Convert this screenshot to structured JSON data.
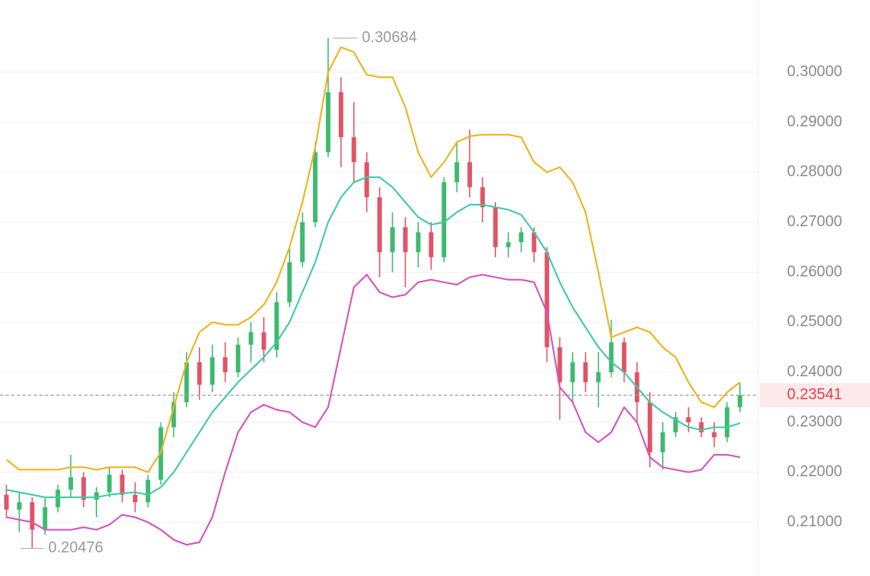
{
  "chart_data": {
    "type": "candlestick",
    "ylim": [
      0.19925,
      0.31444
    ],
    "yticks": [
      {
        "value": 0.21,
        "label": "0.21000"
      },
      {
        "value": 0.22,
        "label": "0.22000"
      },
      {
        "value": 0.23,
        "label": "0.23000"
      },
      {
        "value": 0.24,
        "label": "0.24000"
      },
      {
        "value": 0.25,
        "label": "0.25000"
      },
      {
        "value": 0.26,
        "label": "0.26000"
      },
      {
        "value": 0.27,
        "label": "0.27000"
      },
      {
        "value": 0.28,
        "label": "0.28000"
      },
      {
        "value": 0.29,
        "label": "0.29000"
      },
      {
        "value": 0.3,
        "label": "0.30000"
      }
    ],
    "grid": true,
    "up_color": "#3dba6f",
    "down_color": "#e05467",
    "open": [
      0.2155,
      0.2125,
      0.214,
      0.2085,
      0.213,
      0.2165,
      0.219,
      0.2145,
      0.216,
      0.2195,
      0.2155,
      0.214,
      0.2185,
      0.229,
      0.234,
      0.242,
      0.2375,
      0.243,
      0.24,
      0.2455,
      0.248,
      0.2445,
      0.254,
      0.262,
      0.27,
      0.284,
      0.296,
      0.287,
      0.282,
      0.275,
      0.264,
      0.269,
      0.264,
      0.268,
      0.263,
      0.278,
      0.282,
      0.277,
      0.273,
      0.265,
      0.266,
      0.268,
      0.264,
      0.245,
      0.238,
      0.242,
      0.238,
      0.24,
      0.246,
      0.24,
      0.234,
      0.224,
      0.228,
      0.231,
      0.23,
      0.228,
      0.227,
      0.233
    ],
    "high": [
      0.2175,
      0.216,
      0.215,
      0.215,
      0.2175,
      0.2235,
      0.22,
      0.217,
      0.221,
      0.2205,
      0.218,
      0.2195,
      0.23,
      0.236,
      0.244,
      0.245,
      0.2455,
      0.246,
      0.247,
      0.25,
      0.251,
      0.256,
      0.265,
      0.272,
      0.286,
      0.30684,
      0.299,
      0.294,
      0.284,
      0.277,
      0.272,
      0.271,
      0.27,
      0.27,
      0.279,
      0.286,
      0.2885,
      0.279,
      0.274,
      0.268,
      0.269,
      0.269,
      0.265,
      0.247,
      0.244,
      0.244,
      0.244,
      0.2505,
      0.247,
      0.242,
      0.236,
      0.23,
      0.232,
      0.233,
      0.231,
      0.23,
      0.234,
      0.2378
    ],
    "low": [
      0.211,
      0.208,
      0.20476,
      0.2075,
      0.212,
      0.215,
      0.213,
      0.211,
      0.215,
      0.214,
      0.212,
      0.213,
      0.2175,
      0.227,
      0.233,
      0.2345,
      0.236,
      0.238,
      0.239,
      0.242,
      0.242,
      0.243,
      0.253,
      0.261,
      0.269,
      0.283,
      0.281,
      0.278,
      0.272,
      0.259,
      0.26,
      0.257,
      0.261,
      0.2605,
      0.262,
      0.276,
      0.275,
      0.27,
      0.263,
      0.263,
      0.264,
      0.262,
      0.242,
      0.2305,
      0.234,
      0.236,
      0.233,
      0.239,
      0.238,
      0.23,
      0.221,
      0.2205,
      0.227,
      0.228,
      0.227,
      0.225,
      0.226,
      0.232
    ],
    "close": [
      0.2125,
      0.214,
      0.2085,
      0.213,
      0.2165,
      0.219,
      0.2145,
      0.216,
      0.2195,
      0.2155,
      0.214,
      0.2185,
      0.229,
      0.234,
      0.242,
      0.2375,
      0.243,
      0.24,
      0.2455,
      0.248,
      0.2445,
      0.254,
      0.262,
      0.27,
      0.284,
      0.296,
      0.287,
      0.282,
      0.275,
      0.264,
      0.269,
      0.264,
      0.268,
      0.263,
      0.278,
      0.282,
      0.277,
      0.273,
      0.265,
      0.266,
      0.268,
      0.264,
      0.245,
      0.238,
      0.242,
      0.238,
      0.24,
      0.246,
      0.24,
      0.234,
      0.224,
      0.228,
      0.231,
      0.23,
      0.228,
      0.227,
      0.233,
      0.2354
    ],
    "bands": [
      {
        "color": "#eeb31a",
        "values": [
          0.2225,
          0.2205,
          0.2205,
          0.2205,
          0.2205,
          0.221,
          0.221,
          0.2205,
          0.221,
          0.221,
          0.221,
          0.22,
          0.224,
          0.233,
          0.242,
          0.248,
          0.25,
          0.2495,
          0.2495,
          0.251,
          0.2535,
          0.258,
          0.265,
          0.274,
          0.285,
          0.3,
          0.305,
          0.304,
          0.2995,
          0.299,
          0.299,
          0.293,
          0.284,
          0.279,
          0.282,
          0.286,
          0.2872,
          0.2875,
          0.2875,
          0.2875,
          0.287,
          0.282,
          0.28,
          0.281,
          0.278,
          0.272,
          0.26,
          0.247,
          0.248,
          0.249,
          0.248,
          0.245,
          0.243,
          0.238,
          0.234,
          0.233,
          0.236,
          0.238
        ]
      },
      {
        "color": "#3ecaa6",
        "values": [
          0.2165,
          0.216,
          0.2155,
          0.215,
          0.215,
          0.215,
          0.215,
          0.215,
          0.2155,
          0.2158,
          0.216,
          0.2155,
          0.217,
          0.22,
          0.224,
          0.228,
          0.232,
          0.235,
          0.238,
          0.2405,
          0.243,
          0.246,
          0.25,
          0.256,
          0.262,
          0.27,
          0.275,
          0.278,
          0.279,
          0.279,
          0.277,
          0.274,
          0.271,
          0.2695,
          0.27,
          0.272,
          0.2735,
          0.2735,
          0.273,
          0.2725,
          0.2715,
          0.268,
          0.264,
          0.258,
          0.253,
          0.249,
          0.245,
          0.242,
          0.24,
          0.237,
          0.234,
          0.232,
          0.2305,
          0.229,
          0.2285,
          0.229,
          0.229,
          0.2298
        ]
      },
      {
        "color": "#d452c0",
        "values": [
          0.211,
          0.2105,
          0.21,
          0.2085,
          0.2085,
          0.2085,
          0.209,
          0.2085,
          0.2095,
          0.2115,
          0.211,
          0.21,
          0.2085,
          0.2065,
          0.2055,
          0.206,
          0.211,
          0.22,
          0.228,
          0.232,
          0.2335,
          0.2325,
          0.232,
          0.23,
          0.229,
          0.233,
          0.245,
          0.257,
          0.2595,
          0.256,
          0.255,
          0.2555,
          0.258,
          0.2585,
          0.258,
          0.2575,
          0.259,
          0.2595,
          0.259,
          0.2585,
          0.2585,
          0.258,
          0.252,
          0.237,
          0.234,
          0.228,
          0.226,
          0.228,
          0.233,
          0.23,
          0.223,
          0.221,
          0.2205,
          0.22,
          0.2205,
          0.2235,
          0.2235,
          0.223
        ]
      }
    ],
    "max_label": "0.30684",
    "min_label": "0.20476",
    "last_price": {
      "value": 0.23541,
      "label": "0.23541"
    }
  }
}
